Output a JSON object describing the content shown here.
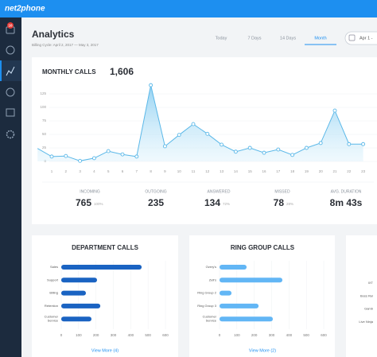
{
  "brand": "net2phone",
  "sidebar": {
    "badge": "10"
  },
  "header": {
    "title": "Analytics",
    "subtitle": "Billing Cycle: April 2, 2017 — May 3, 2017"
  },
  "tabs": [
    "Today",
    "7 Days",
    "14 Days",
    "Month"
  ],
  "active_tab": 3,
  "date_picker": "Apr 1 -",
  "monthly": {
    "title": "MONTHLY CALLS",
    "total": "1,606",
    "chart_data": {
      "type": "line",
      "categories": [
        null,
        "1",
        "2",
        "3",
        "4",
        "5",
        "6",
        "7",
        "8",
        "9",
        "10",
        "11",
        "12",
        "13",
        "14",
        "15",
        "16",
        "17",
        "18",
        "19",
        "20",
        "21",
        "22",
        "23"
      ],
      "values": [
        24,
        9,
        10,
        1,
        6,
        19,
        13,
        9,
        141,
        28,
        49,
        69,
        51,
        31,
        18,
        25,
        16,
        22,
        12,
        25,
        34,
        94,
        32,
        32
      ],
      "ylim": [
        0,
        145
      ],
      "yticks": [
        0,
        25,
        50,
        75,
        100,
        125
      ],
      "color": "#5bb8e8",
      "grid": true
    },
    "stats": [
      {
        "label": "INCOMING",
        "value": 765,
        "percent": "100%"
      },
      {
        "label": "OUTGOING",
        "value": 235
      },
      {
        "label": "ANSWERED",
        "value": 134,
        "percent": "72%"
      },
      {
        "label": "MISSED",
        "value": 78,
        "percent": "28%"
      },
      {
        "label": "AVG. DURATION",
        "value": "8m 43s"
      }
    ]
  },
  "department": {
    "title": "DEPARTMENT CALLS",
    "chart_data": {
      "type": "hbar",
      "categories": [
        "Sales",
        "Support",
        "Billing",
        "Retention",
        "Customer Service"
      ],
      "values": [
        463,
        206,
        142,
        225,
        174
      ],
      "xlim": [
        0,
        600
      ],
      "xticks": [
        0,
        100,
        200,
        300,
        400,
        500,
        600
      ],
      "color": "#1a63c2",
      "grid": true
    },
    "link": "View More (4)"
  },
  "ring_group": {
    "title": "RING GROUP CALLS",
    "chart_data": {
      "type": "hbar",
      "categories": [
        "Overy's",
        "Zell's",
        "Ring Group 2",
        "Ring Group 3",
        "Customer Service"
      ],
      "values": [
        156,
        362,
        69,
        225,
        307
      ],
      "xlim": [
        0,
        600
      ],
      "xticks": [
        0,
        100,
        200,
        300,
        400,
        500,
        600
      ],
      "color": "#62b6f5",
      "grid": true
    },
    "link": "View More (2)"
  },
  "third_card": {
    "labels": [
      "IXT",
      "Boss Rei",
      "Gamb",
      "Live Ninja"
    ]
  }
}
